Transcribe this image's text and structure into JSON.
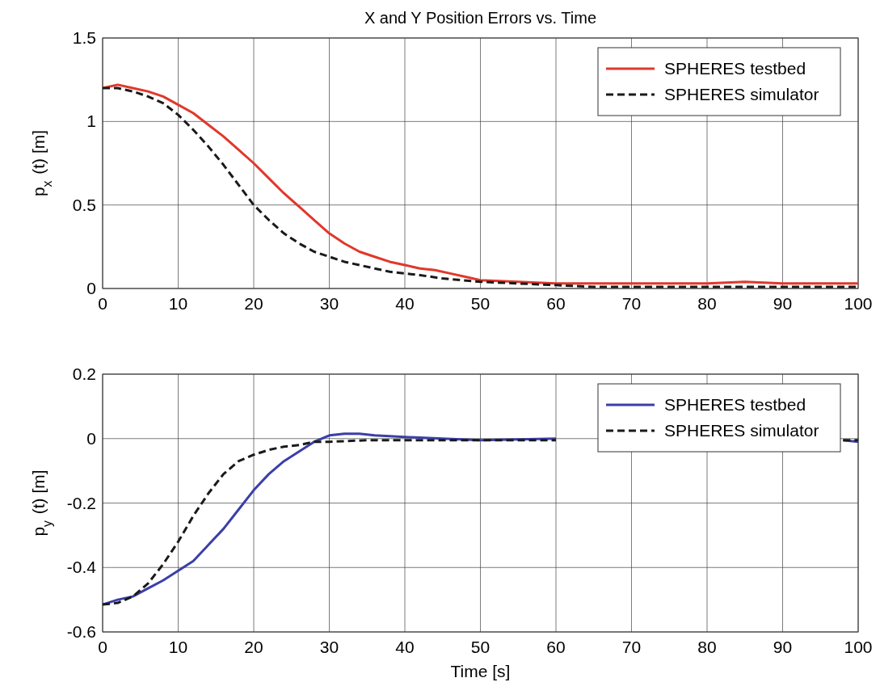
{
  "chart_data": [
    {
      "type": "line",
      "title": "X and Y Position Errors vs. Time",
      "ylabel": "p$_{x}$ (t) [m]",
      "xlim": [
        0,
        100
      ],
      "xticks": [
        0,
        10,
        20,
        30,
        40,
        50,
        60,
        70,
        80,
        90,
        100
      ],
      "ylim": [
        0,
        1.5
      ],
      "yticks": [
        0,
        0.5,
        1,
        1.5
      ],
      "grid": true,
      "legend": "top right",
      "series": [
        {
          "name": "SPHERES testbed",
          "color": "#e0382b",
          "line_style": "solid",
          "x": [
            0,
            2,
            4,
            6,
            8,
            10,
            12,
            14,
            16,
            18,
            20,
            22,
            24,
            26,
            28,
            30,
            32,
            34,
            36,
            38,
            40,
            42,
            44,
            46,
            48,
            50,
            55,
            60,
            65,
            70,
            75,
            80,
            85,
            90,
            95,
            100
          ],
          "values": [
            1.2,
            1.22,
            1.2,
            1.18,
            1.15,
            1.1,
            1.05,
            0.98,
            0.91,
            0.83,
            0.75,
            0.66,
            0.57,
            0.49,
            0.41,
            0.33,
            0.27,
            0.22,
            0.19,
            0.16,
            0.14,
            0.12,
            0.11,
            0.09,
            0.07,
            0.05,
            0.04,
            0.03,
            0.03,
            0.03,
            0.03,
            0.03,
            0.04,
            0.03,
            0.03,
            0.03
          ]
        },
        {
          "name": "SPHERES simulator",
          "color": "#1a1a1a",
          "line_style": "dashed",
          "x": [
            0,
            2,
            4,
            6,
            8,
            10,
            12,
            14,
            16,
            18,
            20,
            22,
            24,
            26,
            28,
            30,
            32,
            34,
            36,
            38,
            40,
            42,
            45,
            50,
            55,
            60,
            65,
            70,
            80,
            90,
            100
          ],
          "values": [
            1.2,
            1.2,
            1.18,
            1.15,
            1.11,
            1.04,
            0.95,
            0.85,
            0.74,
            0.62,
            0.5,
            0.41,
            0.33,
            0.27,
            0.22,
            0.19,
            0.16,
            0.14,
            0.12,
            0.1,
            0.09,
            0.08,
            0.06,
            0.04,
            0.03,
            0.02,
            0.01,
            0.01,
            0.01,
            0.01,
            0.01
          ]
        }
      ]
    },
    {
      "type": "line",
      "xlabel": "Time [s]",
      "ylabel": "p$_{y}$ (t) [m]",
      "xlim": [
        0,
        100
      ],
      "xticks": [
        0,
        10,
        20,
        30,
        40,
        50,
        60,
        70,
        80,
        90,
        100
      ],
      "ylim": [
        -0.6,
        0.2
      ],
      "yticks": [
        -0.6,
        -0.4,
        -0.2,
        0,
        0.2
      ],
      "grid": true,
      "legend": "top right",
      "series": [
        {
          "name": "SPHERES testbed",
          "color": "#3a3fa8",
          "line_style": "solid",
          "x": [
            0,
            2,
            4,
            6,
            8,
            10,
            12,
            14,
            16,
            18,
            20,
            22,
            24,
            26,
            28,
            30,
            32,
            34,
            36,
            40,
            45,
            50,
            60,
            70,
            80,
            90,
            98,
            100
          ],
          "values": [
            -0.515,
            -0.5,
            -0.49,
            -0.465,
            -0.44,
            -0.41,
            -0.38,
            -0.33,
            -0.28,
            -0.22,
            -0.16,
            -0.11,
            -0.07,
            -0.04,
            -0.01,
            0.01,
            0.015,
            0.015,
            0.01,
            0.005,
            0,
            -0.005,
            0,
            null,
            null,
            null,
            -0.005,
            -0.01
          ]
        },
        {
          "name": "SPHERES simulator",
          "color": "#1a1a1a",
          "line_style": "dashed",
          "x": [
            0,
            2,
            4,
            6,
            8,
            10,
            12,
            14,
            16,
            18,
            20,
            22,
            24,
            26,
            28,
            30,
            35,
            40,
            50,
            60,
            70,
            98,
            100
          ],
          "values": [
            -0.515,
            -0.51,
            -0.49,
            -0.45,
            -0.39,
            -0.32,
            -0.24,
            -0.17,
            -0.11,
            -0.07,
            -0.05,
            -0.035,
            -0.025,
            -0.02,
            -0.01,
            -0.01,
            -0.005,
            -0.005,
            -0.005,
            -0.005,
            null,
            -0.005,
            -0.005
          ]
        }
      ]
    }
  ]
}
